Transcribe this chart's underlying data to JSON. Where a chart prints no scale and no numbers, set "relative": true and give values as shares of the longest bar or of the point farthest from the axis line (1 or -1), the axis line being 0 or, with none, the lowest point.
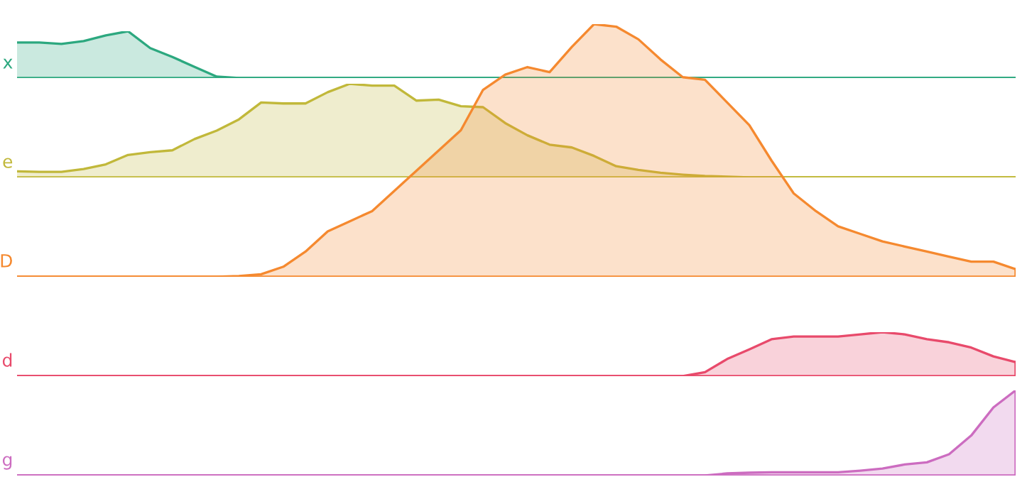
{
  "chart_data": [
    {
      "type": "area",
      "relative": true,
      "legend": false,
      "tick_labels": false,
      "marker": "none",
      "line_style": "solid",
      "categories": [
        null,
        null,
        null,
        null,
        null,
        null,
        null,
        null,
        null,
        null,
        null,
        null,
        null,
        null,
        null,
        null,
        null,
        null,
        null,
        null,
        null,
        null,
        null,
        null,
        null,
        null,
        null,
        null,
        null,
        null,
        null,
        null,
        null,
        null,
        null,
        null,
        null,
        null,
        null,
        null,
        null,
        null,
        null,
        null,
        null,
        null
      ],
      "series": [
        {
          "name": "x",
          "color": "#2ca87f",
          "values": [
            0.76,
            0.76,
            0.73,
            0.79,
            0.91,
            1,
            0.64,
            0.45,
            0.24,
            0.03,
            0,
            0,
            0,
            0,
            0,
            0,
            0,
            0,
            0,
            0,
            0,
            0,
            0,
            0,
            0,
            0,
            0,
            0,
            0,
            0,
            0,
            0,
            0,
            0,
            0,
            0,
            0,
            0,
            0,
            0,
            0,
            0,
            0,
            0,
            0,
            0
          ]
        }
      ]
    },
    {
      "type": "area",
      "relative": true,
      "legend": false,
      "tick_labels": false,
      "marker": "none",
      "line_style": "solid",
      "categories": [
        null,
        null,
        null,
        null,
        null,
        null,
        null,
        null,
        null,
        null,
        null,
        null,
        null,
        null,
        null,
        null,
        null,
        null,
        null,
        null,
        null,
        null,
        null,
        null,
        null,
        null,
        null,
        null,
        null,
        null,
        null,
        null,
        null,
        null,
        null,
        null,
        null,
        null,
        null,
        null,
        null,
        null,
        null,
        null,
        null,
        null
      ],
      "series": [
        {
          "name": "e",
          "color": "#c1b83a",
          "values": [
            0.065,
            0.06,
            0.06,
            0.09,
            0.14,
            0.24,
            0.27,
            0.29,
            0.41,
            0.5,
            0.62,
            0.8,
            0.79,
            0.79,
            0.91,
            1,
            0.98,
            0.98,
            0.82,
            0.83,
            0.76,
            0.75,
            0.58,
            0.45,
            0.35,
            0.32,
            0.23,
            0.12,
            0.08,
            0.05,
            0.03,
            0.015,
            0.008,
            0,
            0,
            0,
            0,
            0,
            0,
            0,
            0,
            0,
            0,
            0,
            0,
            0
          ]
        }
      ]
    },
    {
      "type": "area",
      "relative": true,
      "legend": false,
      "tick_labels": false,
      "marker": "none",
      "line_style": "solid",
      "categories": [
        null,
        null,
        null,
        null,
        null,
        null,
        null,
        null,
        null,
        null,
        null,
        null,
        null,
        null,
        null,
        null,
        null,
        null,
        null,
        null,
        null,
        null,
        null,
        null,
        null,
        null,
        null,
        null,
        null,
        null,
        null,
        null,
        null,
        null,
        null,
        null,
        null,
        null,
        null,
        null,
        null,
        null,
        null,
        null,
        null,
        null
      ],
      "series": [
        {
          "name": "D",
          "color": "#f5892f",
          "values": [
            0,
            0,
            0,
            0,
            0,
            0,
            0,
            0,
            0,
            0,
            0.003,
            0.01,
            0.04,
            0.1,
            0.18,
            0.22,
            0.26,
            0.34,
            0.42,
            0.5,
            0.58,
            0.74,
            0.8,
            0.83,
            0.81,
            0.91,
            1,
            0.99,
            0.94,
            0.86,
            0.79,
            0.78,
            0.69,
            0.6,
            0.46,
            0.33,
            0.26,
            0.2,
            0.17,
            0.14,
            0.12,
            0.1,
            0.08,
            0.06,
            0.06,
            0.03
          ]
        }
      ]
    },
    {
      "type": "area",
      "relative": true,
      "legend": false,
      "tick_labels": false,
      "marker": "none",
      "line_style": "solid",
      "categories": [
        null,
        null,
        null,
        null,
        null,
        null,
        null,
        null,
        null,
        null,
        null,
        null,
        null,
        null,
        null,
        null,
        null,
        null,
        null,
        null,
        null,
        null,
        null,
        null,
        null,
        null,
        null,
        null,
        null,
        null,
        null,
        null,
        null,
        null,
        null,
        null,
        null,
        null,
        null,
        null,
        null,
        null,
        null,
        null,
        null,
        null
      ],
      "series": [
        {
          "name": "d",
          "color": "#e84a6b",
          "values": [
            0,
            0,
            0,
            0,
            0,
            0,
            0,
            0,
            0,
            0,
            0,
            0,
            0,
            0,
            0,
            0,
            0,
            0,
            0,
            0,
            0,
            0,
            0,
            0,
            0,
            0,
            0,
            0,
            0,
            0,
            0,
            0.09,
            0.39,
            0.61,
            0.84,
            0.9,
            0.9,
            0.9,
            0.95,
            1,
            0.95,
            0.84,
            0.77,
            0.65,
            0.45,
            0.32
          ]
        }
      ]
    },
    {
      "type": "area",
      "relative": true,
      "legend": false,
      "tick_labels": false,
      "marker": "none",
      "line_style": "solid",
      "categories": [
        null,
        null,
        null,
        null,
        null,
        null,
        null,
        null,
        null,
        null,
        null,
        null,
        null,
        null,
        null,
        null,
        null,
        null,
        null,
        null,
        null,
        null,
        null,
        null,
        null,
        null,
        null,
        null,
        null,
        null,
        null,
        null,
        null,
        null,
        null,
        null,
        null,
        null,
        null,
        null,
        null,
        null,
        null,
        null,
        null,
        null
      ],
      "series": [
        {
          "name": "g",
          "color": "#cc6cc0",
          "values": [
            0,
            0,
            0,
            0,
            0,
            0,
            0,
            0,
            0,
            0,
            0,
            0,
            0,
            0,
            0,
            0,
            0,
            0,
            0,
            0,
            0,
            0,
            0,
            0,
            0,
            0,
            0,
            0,
            0,
            0,
            0,
            0,
            0.025,
            0.033,
            0.038,
            0.038,
            0.038,
            0.038,
            0.058,
            0.083,
            0.13,
            0.155,
            0.25,
            0.47,
            0.8,
            1
          ]
        }
      ]
    }
  ]
}
